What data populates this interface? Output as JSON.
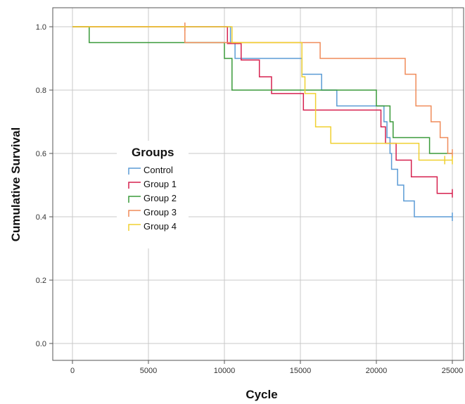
{
  "chart_data": {
    "type": "line",
    "subtype": "kaplan-meier step",
    "xlabel": "Cycle",
    "ylabel": "Cumulative Survival",
    "xlim": [
      0,
      25000
    ],
    "ylim": [
      0,
      1.0
    ],
    "xticks": [
      "0",
      "5000",
      "10000",
      "15000",
      "20000",
      "25000"
    ],
    "yticks": [
      "0.0",
      "0.2",
      "0.4",
      "0.6",
      "0.8",
      "1.0"
    ],
    "grid": true,
    "legend": {
      "title": "Groups",
      "position": "center-left"
    },
    "series": [
      {
        "name": "Control",
        "color": "#5b9bd5",
        "points": [
          [
            0,
            1.0
          ],
          [
            10400,
            1.0
          ],
          [
            10400,
            0.95
          ],
          [
            10700,
            0.95
          ],
          [
            10700,
            0.9
          ],
          [
            15100,
            0.9
          ],
          [
            15100,
            0.85
          ],
          [
            16400,
            0.85
          ],
          [
            16400,
            0.8
          ],
          [
            17400,
            0.8
          ],
          [
            17400,
            0.75
          ],
          [
            20500,
            0.75
          ],
          [
            20500,
            0.7
          ],
          [
            20700,
            0.7
          ],
          [
            20700,
            0.65
          ],
          [
            20900,
            0.65
          ],
          [
            20900,
            0.6
          ],
          [
            21000,
            0.6
          ],
          [
            21000,
            0.55
          ],
          [
            21400,
            0.55
          ],
          [
            21400,
            0.5
          ],
          [
            21800,
            0.5
          ],
          [
            21800,
            0.45
          ],
          [
            22500,
            0.45
          ],
          [
            22500,
            0.4
          ],
          [
            25000,
            0.4
          ]
        ],
        "censored": [
          [
            25000,
            0.4
          ]
        ]
      },
      {
        "name": "Group 1",
        "color": "#d6214f",
        "points": [
          [
            0,
            1.0
          ],
          [
            10200,
            1.0
          ],
          [
            10200,
            0.947
          ],
          [
            11100,
            0.947
          ],
          [
            11100,
            0.895
          ],
          [
            12300,
            0.895
          ],
          [
            12300,
            0.842
          ],
          [
            13100,
            0.842
          ],
          [
            13100,
            0.789
          ],
          [
            15200,
            0.789
          ],
          [
            15200,
            0.737
          ],
          [
            20300,
            0.737
          ],
          [
            20300,
            0.684
          ],
          [
            20600,
            0.684
          ],
          [
            20600,
            0.632
          ],
          [
            21300,
            0.632
          ],
          [
            21300,
            0.579
          ],
          [
            22300,
            0.579
          ],
          [
            22300,
            0.526
          ],
          [
            24000,
            0.526
          ],
          [
            24000,
            0.474
          ],
          [
            25000,
            0.474
          ]
        ],
        "censored": [
          [
            25000,
            0.474
          ]
        ]
      },
      {
        "name": "Group 2",
        "color": "#3a9a3a",
        "points": [
          [
            0,
            1.0
          ],
          [
            1100,
            1.0
          ],
          [
            1100,
            0.95
          ],
          [
            10000,
            0.95
          ],
          [
            10000,
            0.9
          ],
          [
            10500,
            0.9
          ],
          [
            10500,
            0.8
          ],
          [
            20000,
            0.8
          ],
          [
            20000,
            0.75
          ],
          [
            20900,
            0.75
          ],
          [
            20900,
            0.7
          ],
          [
            21100,
            0.7
          ],
          [
            21100,
            0.65
          ],
          [
            23500,
            0.65
          ],
          [
            23500,
            0.6
          ],
          [
            25000,
            0.6
          ]
        ],
        "censored": []
      },
      {
        "name": "Group 3",
        "color": "#f08c5a",
        "points": [
          [
            0,
            1.0
          ],
          [
            7400,
            1.0
          ],
          [
            7400,
            0.95
          ],
          [
            16300,
            0.95
          ],
          [
            16300,
            0.9
          ],
          [
            21900,
            0.9
          ],
          [
            21900,
            0.85
          ],
          [
            22600,
            0.85
          ],
          [
            22600,
            0.75
          ],
          [
            23600,
            0.75
          ],
          [
            23600,
            0.7
          ],
          [
            24200,
            0.7
          ],
          [
            24200,
            0.65
          ],
          [
            24700,
            0.65
          ],
          [
            24700,
            0.6
          ],
          [
            25000,
            0.6
          ]
        ],
        "censored": [
          [
            7400,
            1.0
          ],
          [
            25000,
            0.6
          ]
        ]
      },
      {
        "name": "Group 4",
        "color": "#f0d030",
        "points": [
          [
            0,
            1.0
          ],
          [
            10500,
            1.0
          ],
          [
            10500,
            0.95
          ],
          [
            15100,
            0.95
          ],
          [
            15100,
            0.842
          ],
          [
            15300,
            0.842
          ],
          [
            15300,
            0.789
          ],
          [
            16000,
            0.789
          ],
          [
            16000,
            0.684
          ],
          [
            17000,
            0.684
          ],
          [
            17000,
            0.632
          ],
          [
            22800,
            0.632
          ],
          [
            22800,
            0.579
          ],
          [
            25000,
            0.579
          ]
        ],
        "censored": [
          [
            24500,
            0.579
          ],
          [
            25000,
            0.579
          ]
        ]
      }
    ]
  }
}
